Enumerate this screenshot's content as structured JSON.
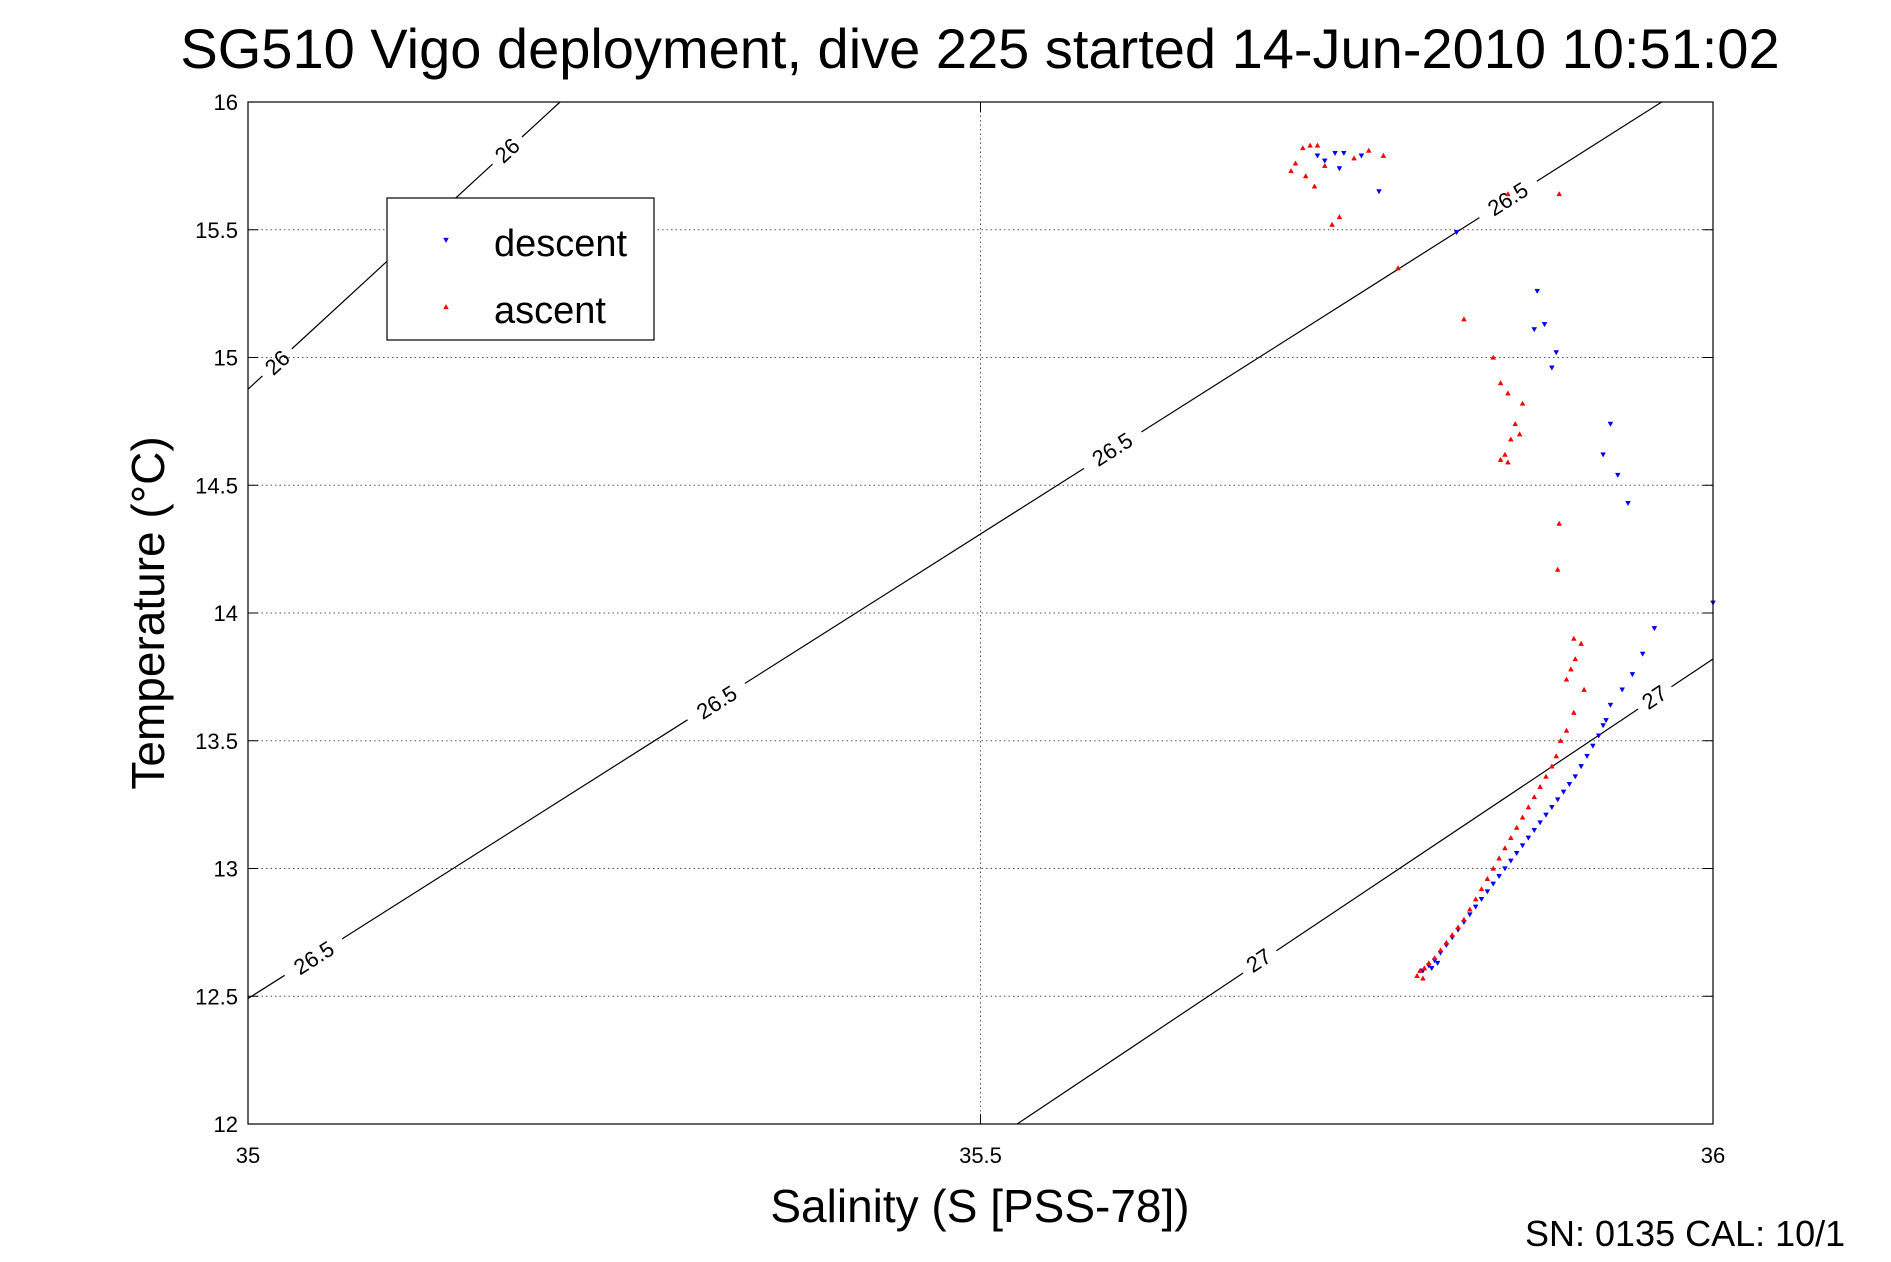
{
  "chart_data": {
    "type": "scatter",
    "title": "SG510 Vigo deployment, dive 225 started 14-Jun-2010 10:51:02",
    "xlabel": "Salinity (S [PSS-78])",
    "ylabel": "Temperature (°C)",
    "xlim": [
      35,
      36
    ],
    "ylim": [
      12,
      16
    ],
    "xticks": [
      "35",
      "35.5",
      "36"
    ],
    "yticks": [
      "12",
      "12.5",
      "13",
      "13.5",
      "14",
      "14.5",
      "15",
      "15.5",
      "16"
    ],
    "grid": true,
    "legend_position": "top-left",
    "footer": "SN: 0135  CAL: 10/1",
    "series": [
      {
        "name": "descent",
        "color": "#0000ff",
        "marker": "triangle-down",
        "points": [
          [
            35.73,
            15.79
          ],
          [
            35.735,
            15.77
          ],
          [
            35.742,
            15.8
          ],
          [
            35.748,
            15.8
          ],
          [
            35.745,
            15.74
          ],
          [
            35.76,
            15.79
          ],
          [
            35.772,
            15.65
          ],
          [
            35.825,
            15.49
          ],
          [
            35.88,
            15.26
          ],
          [
            35.885,
            15.13
          ],
          [
            35.878,
            15.11
          ],
          [
            35.893,
            15.02
          ],
          [
            35.89,
            14.96
          ],
          [
            35.93,
            14.74
          ],
          [
            35.925,
            14.62
          ],
          [
            35.935,
            14.54
          ],
          [
            35.942,
            14.43
          ],
          [
            36.0,
            14.04
          ],
          [
            35.96,
            13.94
          ],
          [
            35.952,
            13.84
          ],
          [
            35.945,
            13.76
          ],
          [
            35.938,
            13.7
          ],
          [
            35.93,
            13.64
          ],
          [
            35.927,
            13.58
          ],
          [
            35.925,
            13.56
          ],
          [
            35.922,
            13.52
          ],
          [
            35.918,
            13.48
          ],
          [
            35.914,
            13.44
          ],
          [
            35.91,
            13.4
          ],
          [
            35.906,
            13.36
          ],
          [
            35.902,
            13.33
          ],
          [
            35.898,
            13.3
          ],
          [
            35.894,
            13.27
          ],
          [
            35.89,
            13.24
          ],
          [
            35.886,
            13.21
          ],
          [
            35.882,
            13.18
          ],
          [
            35.878,
            13.15
          ],
          [
            35.874,
            13.12
          ],
          [
            35.87,
            13.09
          ],
          [
            35.866,
            13.06
          ],
          [
            35.862,
            13.03
          ],
          [
            35.858,
            13.0
          ],
          [
            35.854,
            12.97
          ],
          [
            35.85,
            12.94
          ],
          [
            35.846,
            12.91
          ],
          [
            35.842,
            12.88
          ],
          [
            35.838,
            12.85
          ],
          [
            35.834,
            12.82
          ],
          [
            35.83,
            12.79
          ],
          [
            35.826,
            12.76
          ],
          [
            35.822,
            12.73
          ],
          [
            35.818,
            12.7
          ],
          [
            35.814,
            12.67
          ],
          [
            35.81,
            12.64
          ],
          [
            35.806,
            12.62
          ],
          [
            35.802,
            12.6
          ],
          [
            35.808,
            12.61
          ],
          [
            35.812,
            12.63
          ]
        ]
      },
      {
        "name": "ascent",
        "color": "#ff0000",
        "marker": "triangle-up",
        "points": [
          [
            35.72,
            15.82
          ],
          [
            35.725,
            15.83
          ],
          [
            35.73,
            15.83
          ],
          [
            35.715,
            15.76
          ],
          [
            35.712,
            15.73
          ],
          [
            35.722,
            15.71
          ],
          [
            35.728,
            15.67
          ],
          [
            35.735,
            15.75
          ],
          [
            35.755,
            15.78
          ],
          [
            35.765,
            15.81
          ],
          [
            35.775,
            15.79
          ],
          [
            35.745,
            15.55
          ],
          [
            35.74,
            15.52
          ],
          [
            35.785,
            15.35
          ],
          [
            35.86,
            15.64
          ],
          [
            35.895,
            15.64
          ],
          [
            35.83,
            15.15
          ],
          [
            35.85,
            15.0
          ],
          [
            35.855,
            14.9
          ],
          [
            35.86,
            14.86
          ],
          [
            35.87,
            14.82
          ],
          [
            35.865,
            14.74
          ],
          [
            35.862,
            14.68
          ],
          [
            35.858,
            14.62
          ],
          [
            35.855,
            14.6
          ],
          [
            35.86,
            14.59
          ],
          [
            35.868,
            14.7
          ],
          [
            35.895,
            14.35
          ],
          [
            35.894,
            14.17
          ],
          [
            35.905,
            13.9
          ],
          [
            35.91,
            13.88
          ],
          [
            35.906,
            13.82
          ],
          [
            35.903,
            13.78
          ],
          [
            35.9,
            13.74
          ],
          [
            35.912,
            13.7
          ],
          [
            35.905,
            13.61
          ],
          [
            35.9,
            13.54
          ],
          [
            35.896,
            13.5
          ],
          [
            35.893,
            13.44
          ],
          [
            35.89,
            13.4
          ],
          [
            35.886,
            13.36
          ],
          [
            35.882,
            13.32
          ],
          [
            35.878,
            13.28
          ],
          [
            35.874,
            13.24
          ],
          [
            35.87,
            13.2
          ],
          [
            35.866,
            13.16
          ],
          [
            35.862,
            13.12
          ],
          [
            35.858,
            13.08
          ],
          [
            35.854,
            13.04
          ],
          [
            35.85,
            13.0
          ],
          [
            35.846,
            12.96
          ],
          [
            35.842,
            12.92
          ],
          [
            35.838,
            12.88
          ],
          [
            35.834,
            12.84
          ],
          [
            35.83,
            12.8
          ],
          [
            35.826,
            12.77
          ],
          [
            35.822,
            12.74
          ],
          [
            35.818,
            12.71
          ],
          [
            35.814,
            12.68
          ],
          [
            35.81,
            12.65
          ],
          [
            35.806,
            12.63
          ],
          [
            35.803,
            12.61
          ],
          [
            35.8,
            12.6
          ],
          [
            35.798,
            12.58
          ],
          [
            35.802,
            12.57
          ]
        ]
      }
    ],
    "contours": [
      {
        "label": "26",
        "points": [
          [
            34.997,
            14.86
          ],
          [
            35.213,
            16.0
          ]
        ],
        "labels_at": [
          [
            35.02,
            14.98
          ],
          [
            35.177,
            15.81
          ]
        ]
      },
      {
        "label": "26.5",
        "points": [
          [
            34.997,
            12.48
          ],
          [
            35.965,
            16.0
          ]
        ],
        "labels_at": [
          [
            35.045,
            12.65
          ],
          [
            35.32,
            13.65
          ],
          [
            35.59,
            14.64
          ],
          [
            35.86,
            15.62
          ]
        ]
      },
      {
        "label": "27",
        "points": [
          [
            35.525,
            12.0
          ],
          [
            36.0,
            13.82
          ]
        ],
        "labels_at": [
          [
            35.69,
            12.64
          ],
          [
            35.96,
            13.67
          ]
        ]
      }
    ]
  }
}
